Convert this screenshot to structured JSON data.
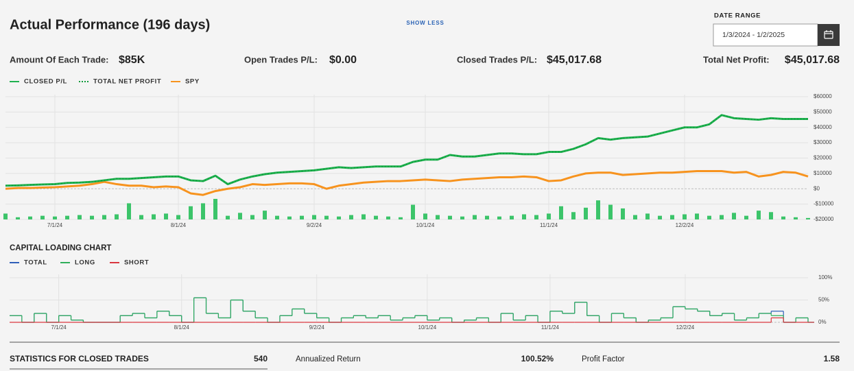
{
  "header": {
    "title": "Actual Performance (196 days)",
    "show_less": "SHOW LESS",
    "date_range_label": "DATE RANGE",
    "date_range": "1/3/2024 - 1/2/2025"
  },
  "summary": [
    {
      "label": "Amount Of Each Trade:",
      "value": "$85K"
    },
    {
      "label": "Open Trades P/L:",
      "value": "$0.00"
    },
    {
      "label": "Closed Trades P/L:",
      "value": "$45,017.68"
    },
    {
      "label": "Total Net Profit:",
      "value": "$45,017.68"
    }
  ],
  "chart_data": [
    {
      "type": "line",
      "grid": true,
      "categories": [
        null,
        null,
        null,
        null,
        "7/1/24",
        null,
        null,
        null,
        null,
        null,
        null,
        null,
        null,
        null,
        "8/1/24",
        null,
        null,
        null,
        null,
        null,
        null,
        null,
        null,
        null,
        null,
        "9/2/24",
        null,
        null,
        null,
        null,
        null,
        null,
        null,
        null,
        "10/1/24",
        null,
        null,
        null,
        null,
        null,
        null,
        null,
        null,
        null,
        "11/1/24",
        null,
        null,
        null,
        null,
        null,
        null,
        null,
        null,
        null,
        null,
        "12/2/24",
        null,
        null,
        null,
        null,
        null,
        null,
        null,
        null,
        null,
        null
      ],
      "ylim": [
        -20000,
        60000
      ],
      "yticks": [
        {
          "value": -20000,
          "label": "-$20000"
        },
        {
          "value": -10000,
          "label": "-$10000"
        },
        {
          "value": 0,
          "label": "$0"
        },
        {
          "value": 10000,
          "label": "$10000"
        },
        {
          "value": 20000,
          "label": "$20000"
        },
        {
          "value": 30000,
          "label": "$30000"
        },
        {
          "value": 40000,
          "label": "$40000"
        },
        {
          "value": 50000,
          "label": "$50000"
        },
        {
          "value": 60000,
          "label": "$60000"
        }
      ],
      "series": [
        {
          "name": "CLOSED P/L",
          "color": "#1fb14f",
          "style": "solid",
          "values": [
            2000,
            2200,
            2500,
            2800,
            3000,
            3800,
            4000,
            4500,
            5500,
            6500,
            6500,
            7000,
            7500,
            8000,
            8000,
            5500,
            5000,
            8500,
            3000,
            6000,
            8000,
            9500,
            10500,
            11000,
            11500,
            12000,
            13000,
            14000,
            13500,
            14000,
            14500,
            14500,
            14500,
            17500,
            19000,
            19000,
            22000,
            21000,
            21000,
            22000,
            23000,
            23000,
            22500,
            22500,
            24000,
            24000,
            26000,
            29000,
            33000,
            32000,
            33000,
            33500,
            34000,
            36000,
            38000,
            40000,
            40000,
            42000,
            48000,
            46000,
            45500,
            45000,
            46000,
            45500,
            45500,
            45500
          ]
        },
        {
          "name": "TOTAL NET PROFIT",
          "color": "#0e9a3a",
          "style": "dotted",
          "values": [
            2000,
            2200,
            2500,
            2800,
            3000,
            3800,
            4000,
            4500,
            5500,
            6500,
            6500,
            7000,
            7500,
            8000,
            8000,
            5500,
            5000,
            8500,
            3000,
            6000,
            8000,
            9500,
            10500,
            11000,
            11500,
            12000,
            13000,
            14000,
            13500,
            14000,
            14500,
            14500,
            14500,
            17500,
            19000,
            19000,
            22000,
            21000,
            21000,
            22000,
            23000,
            23000,
            22500,
            22500,
            24000,
            24000,
            26000,
            29000,
            33000,
            32000,
            33000,
            33500,
            34000,
            36000,
            38000,
            40000,
            40000,
            42000,
            48000,
            46000,
            45500,
            45000,
            46000,
            45500,
            45500,
            45500
          ]
        },
        {
          "name": "SPY",
          "color": "#f7931e",
          "style": "solid",
          "values": [
            0,
            500,
            500,
            800,
            1000,
            1500,
            2000,
            3000,
            4500,
            3000,
            2000,
            2000,
            1000,
            1500,
            1000,
            -3000,
            -4000,
            -1500,
            0,
            1000,
            3000,
            2500,
            3000,
            3500,
            3500,
            3000,
            0,
            2000,
            3000,
            4000,
            4500,
            5000,
            5000,
            5500,
            6000,
            5500,
            5000,
            6000,
            6500,
            7000,
            7500,
            7500,
            8000,
            7500,
            5000,
            5500,
            8000,
            10000,
            10500,
            10500,
            9000,
            9500,
            10000,
            10500,
            10500,
            11000,
            11500,
            11500,
            11500,
            10500,
            11000,
            8000,
            9000,
            11000,
            10500,
            8000
          ]
        }
      ],
      "bars": {
        "color": "#3cc46a",
        "values": [
          8,
          3,
          4,
          5,
          4,
          5,
          6,
          5,
          6,
          7,
          22,
          6,
          7,
          8,
          6,
          18,
          22,
          28,
          5,
          9,
          6,
          12,
          5,
          4,
          5,
          6,
          5,
          4,
          6,
          7,
          5,
          4,
          3,
          20,
          8,
          6,
          5,
          4,
          6,
          5,
          4,
          5,
          7,
          6,
          8,
          18,
          10,
          16,
          26,
          20,
          15,
          6,
          8,
          5,
          6,
          7,
          8,
          5,
          6,
          9,
          5,
          12,
          10,
          4,
          3,
          2
        ]
      }
    },
    {
      "type": "step",
      "title": "CAPITAL LOADING CHART",
      "grid": true,
      "categories": [
        null,
        null,
        null,
        null,
        "7/1/24",
        null,
        null,
        null,
        null,
        null,
        null,
        null,
        null,
        null,
        "8/1/24",
        null,
        null,
        null,
        null,
        null,
        null,
        null,
        null,
        null,
        null,
        "9/2/24",
        null,
        null,
        null,
        null,
        null,
        null,
        null,
        null,
        "10/1/24",
        null,
        null,
        null,
        null,
        null,
        null,
        null,
        null,
        null,
        "11/1/24",
        null,
        null,
        null,
        null,
        null,
        null,
        null,
        null,
        null,
        null,
        "12/2/24",
        null,
        null,
        null,
        null,
        null,
        null,
        null,
        null,
        null,
        null
      ],
      "ylim": [
        0,
        100
      ],
      "yticks": [
        {
          "value": 0,
          "label": "0%"
        },
        {
          "value": 50,
          "label": "50%"
        },
        {
          "value": 100,
          "label": "100%"
        }
      ],
      "series": [
        {
          "name": "TOTAL",
          "color": "#2f5fb8",
          "values": [
            15,
            0,
            20,
            0,
            15,
            5,
            0,
            0,
            0,
            15,
            20,
            10,
            25,
            15,
            0,
            55,
            20,
            10,
            50,
            25,
            10,
            0,
            15,
            30,
            20,
            10,
            0,
            10,
            15,
            10,
            15,
            5,
            10,
            15,
            5,
            10,
            0,
            5,
            10,
            0,
            20,
            5,
            15,
            0,
            25,
            20,
            45,
            15,
            0,
            20,
            10,
            0,
            5,
            10,
            35,
            30,
            25,
            15,
            20,
            5,
            10,
            20,
            25,
            0,
            10,
            0
          ]
        },
        {
          "name": "LONG",
          "color": "#2fae5a",
          "values": [
            15,
            0,
            20,
            0,
            15,
            5,
            0,
            0,
            0,
            15,
            20,
            10,
            25,
            15,
            0,
            55,
            20,
            10,
            50,
            25,
            10,
            0,
            15,
            30,
            20,
            10,
            0,
            10,
            15,
            10,
            15,
            5,
            10,
            15,
            5,
            10,
            0,
            5,
            10,
            0,
            20,
            5,
            15,
            0,
            25,
            20,
            45,
            15,
            0,
            20,
            10,
            0,
            5,
            10,
            35,
            30,
            25,
            15,
            20,
            5,
            10,
            20,
            15,
            0,
            10,
            0
          ]
        },
        {
          "name": "SHORT",
          "color": "#d9363e",
          "values": [
            0,
            0,
            0,
            0,
            0,
            0,
            0,
            0,
            0,
            0,
            0,
            0,
            0,
            0,
            0,
            0,
            0,
            0,
            0,
            0,
            0,
            0,
            0,
            0,
            0,
            0,
            0,
            0,
            0,
            0,
            0,
            0,
            0,
            0,
            0,
            0,
            0,
            0,
            0,
            0,
            0,
            0,
            0,
            0,
            0,
            0,
            0,
            0,
            0,
            0,
            0,
            0,
            0,
            0,
            0,
            0,
            0,
            0,
            0,
            0,
            0,
            0,
            10,
            0,
            0,
            0
          ]
        }
      ]
    }
  ],
  "statistics": {
    "title": "STATISTICS FOR CLOSED TRADES",
    "count": "540",
    "items": [
      {
        "label": "Annualized Return",
        "value": "100.52%"
      },
      {
        "label": "Profit Factor",
        "value": "1.58"
      }
    ]
  }
}
